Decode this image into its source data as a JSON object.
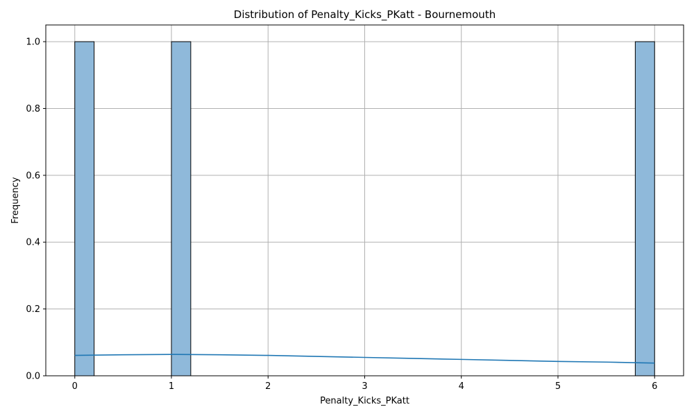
{
  "chart_data": {
    "type": "bar",
    "title": "Distribution of Penalty_Kicks_PKatt - Bournemouth",
    "xlabel": "Penalty_Kicks_PKatt",
    "ylabel": "Frequency",
    "xlim": [
      -0.3,
      6.3
    ],
    "ylim": [
      0,
      1.05
    ],
    "xticks": [
      0,
      1,
      2,
      3,
      4,
      5,
      6
    ],
    "xtick_labels": [
      "0",
      "1",
      "2",
      "3",
      "4",
      "5",
      "6"
    ],
    "yticks": [
      0,
      0.2,
      0.4,
      0.6,
      0.8,
      1.0
    ],
    "ytick_labels": [
      "0.0",
      "0.2",
      "0.4",
      "0.6",
      "0.8",
      "1.0"
    ],
    "grid": true,
    "bins": [
      {
        "start": 0.0,
        "end": 0.2,
        "count": 1
      },
      {
        "start": 1.0,
        "end": 1.2,
        "count": 1
      },
      {
        "start": 5.8,
        "end": 6.0,
        "count": 1
      }
    ],
    "kde": {
      "x": [
        0,
        0.5,
        1,
        1.5,
        2,
        2.5,
        3,
        3.5,
        4,
        4.5,
        5,
        5.5,
        6
      ],
      "y": [
        0.061,
        0.063,
        0.064,
        0.063,
        0.061,
        0.058,
        0.055,
        0.052,
        0.049,
        0.046,
        0.043,
        0.041,
        0.038
      ]
    },
    "colors": {
      "bar_fill": "#8fb9da",
      "bar_edge": "#000000",
      "kde_line": "#1f77b4",
      "grid": "#b0b0b0"
    }
  }
}
